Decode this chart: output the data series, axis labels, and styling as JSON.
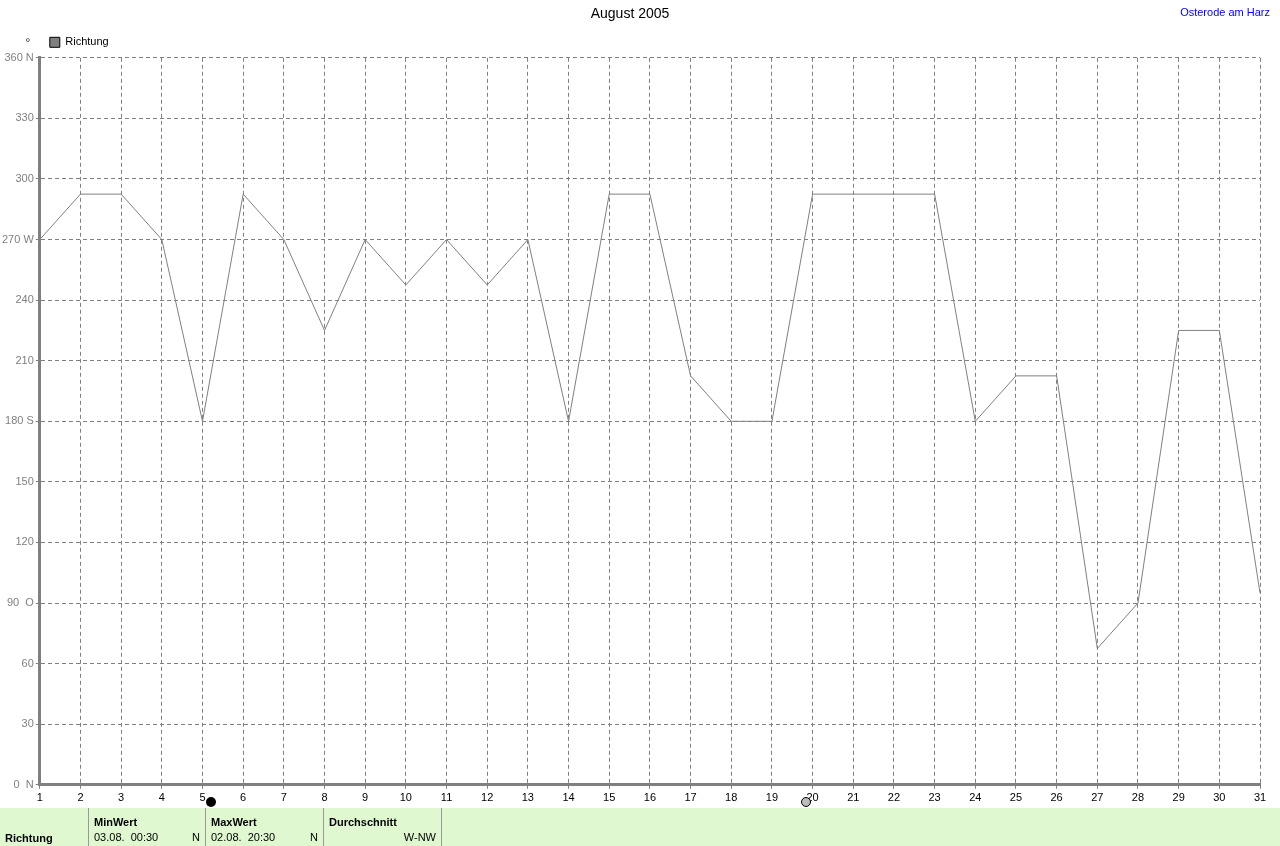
{
  "chart_data": {
    "type": "line",
    "title": "August 2005",
    "ylabel": "°",
    "x": [
      1,
      2,
      3,
      4,
      5,
      6,
      7,
      8,
      9,
      10,
      11,
      12,
      13,
      14,
      15,
      16,
      17,
      18,
      19,
      20,
      21,
      22,
      23,
      24,
      25,
      26,
      27,
      28,
      29,
      30,
      31
    ],
    "series": [
      {
        "name": "Richtung",
        "color": "#808080",
        "values": [
          270,
          292.5,
          292.5,
          270,
          180,
          292.5,
          270,
          225,
          270,
          247.5,
          270,
          247.5,
          270,
          180,
          292.5,
          292.5,
          202.5,
          180,
          180,
          292.5,
          292.5,
          292.5,
          292.5,
          180,
          202.5,
          202.5,
          67.5,
          90,
          225,
          225,
          95
        ]
      }
    ],
    "xlim": [
      1,
      31
    ],
    "xticks": [
      1,
      2,
      3,
      4,
      5,
      6,
      7,
      8,
      9,
      10,
      11,
      12,
      13,
      14,
      15,
      16,
      17,
      18,
      19,
      20,
      21,
      22,
      23,
      24,
      25,
      26,
      27,
      28,
      29,
      30,
      31
    ],
    "ylim": [
      0,
      360
    ],
    "yticks": [
      {
        "value": 0,
        "label": "0  N"
      },
      30,
      60,
      {
        "value": 90,
        "label": "90  O"
      },
      120,
      150,
      {
        "value": 180,
        "label": "180 S"
      },
      210,
      240,
      {
        "value": 270,
        "label": "270 W"
      },
      300,
      330,
      {
        "value": 360,
        "label": "360 N"
      }
    ],
    "grid": true,
    "legend": "top left",
    "marker": "none",
    "line_style": "solid",
    "annotations": [
      "Osterode am Harz",
      "Richtung",
      "MinWert",
      "03.08.  00:30",
      "N",
      "MaxWert",
      "02.08.  20:30",
      "N",
      "Durchschnitt",
      "W-NW"
    ]
  }
}
